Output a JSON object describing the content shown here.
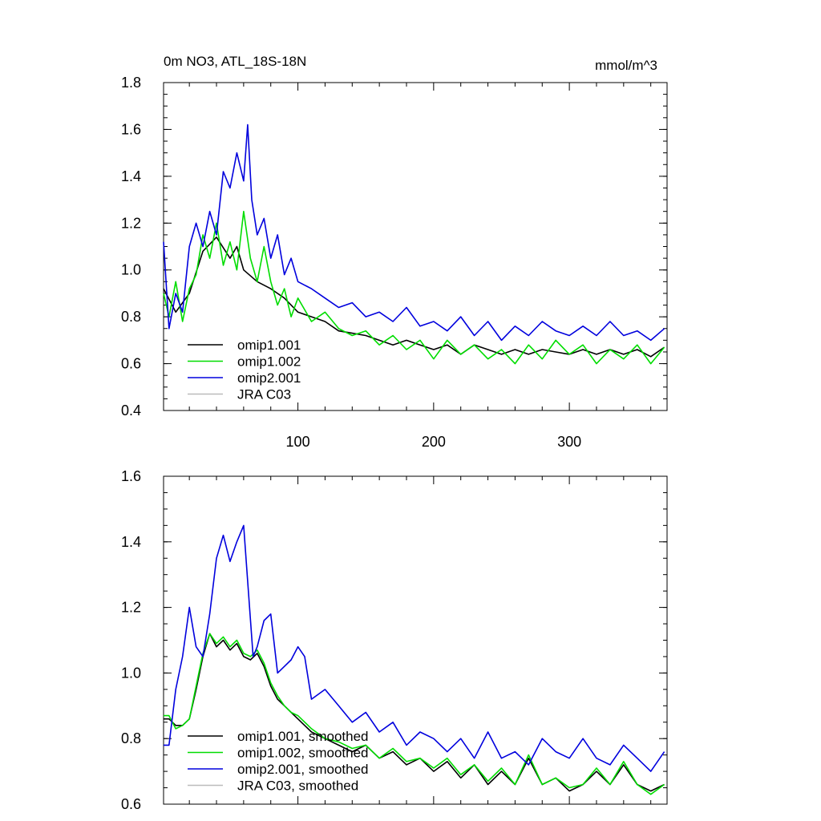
{
  "colors": {
    "omip1_001": "#000000",
    "omip1_002": "#00dd00",
    "omip2_001": "#0000dd",
    "jra_c03": "#bbbbbb"
  },
  "chart_data": [
    {
      "type": "line",
      "title": "0m NO3, ATL_18S-18N",
      "units": "mmol/m^3",
      "xlim": [
        1,
        372
      ],
      "ylim": [
        0.4,
        1.8
      ],
      "xticks": [
        100,
        200,
        300
      ],
      "xtick_labels": [
        "100",
        "200",
        "300"
      ],
      "yticks": [
        0.4,
        0.6,
        0.8,
        1.0,
        1.2,
        1.4,
        1.6,
        1.8
      ],
      "ytick_labels": [
        "0.4",
        "0.6",
        "0.8",
        "1.0",
        "1.2",
        "1.4",
        "1.6",
        "1.8"
      ],
      "legend_position": "bottom-left",
      "series": [
        {
          "name": "omip1.001",
          "color": "#000000",
          "x": [
            1,
            10,
            20,
            30,
            40,
            50,
            55,
            60,
            70,
            80,
            90,
            100,
            110,
            120,
            130,
            140,
            150,
            160,
            170,
            180,
            190,
            200,
            210,
            220,
            230,
            240,
            250,
            260,
            270,
            280,
            290,
            300,
            310,
            320,
            330,
            340,
            350,
            360,
            370
          ],
          "y": [
            0.92,
            0.82,
            0.9,
            1.08,
            1.14,
            1.05,
            1.1,
            1.0,
            0.95,
            0.92,
            0.88,
            0.82,
            0.8,
            0.78,
            0.74,
            0.73,
            0.72,
            0.7,
            0.68,
            0.7,
            0.68,
            0.66,
            0.68,
            0.64,
            0.68,
            0.66,
            0.64,
            0.66,
            0.64,
            0.66,
            0.65,
            0.64,
            0.66,
            0.64,
            0.66,
            0.64,
            0.66,
            0.63,
            0.67
          ]
        },
        {
          "name": "omip1.002",
          "color": "#00dd00",
          "x": [
            1,
            5,
            10,
            15,
            20,
            25,
            30,
            35,
            40,
            45,
            50,
            55,
            60,
            65,
            70,
            75,
            80,
            85,
            90,
            95,
            100,
            110,
            120,
            130,
            140,
            150,
            160,
            170,
            180,
            190,
            200,
            210,
            220,
            230,
            240,
            250,
            260,
            270,
            280,
            290,
            300,
            310,
            320,
            330,
            340,
            350,
            360,
            370
          ],
          "y": [
            0.9,
            0.8,
            0.95,
            0.78,
            0.92,
            0.98,
            1.15,
            1.05,
            1.2,
            1.02,
            1.12,
            1.0,
            1.25,
            1.05,
            0.95,
            1.1,
            0.95,
            0.85,
            0.92,
            0.8,
            0.88,
            0.78,
            0.82,
            0.75,
            0.72,
            0.74,
            0.68,
            0.72,
            0.66,
            0.7,
            0.62,
            0.7,
            0.64,
            0.68,
            0.62,
            0.66,
            0.6,
            0.68,
            0.62,
            0.7,
            0.64,
            0.68,
            0.6,
            0.66,
            0.62,
            0.68,
            0.6,
            0.67
          ]
        },
        {
          "name": "omip2.001",
          "color": "#0000dd",
          "x": [
            1,
            5,
            10,
            15,
            20,
            25,
            30,
            35,
            40,
            45,
            50,
            55,
            60,
            63,
            66,
            70,
            75,
            80,
            85,
            90,
            95,
            100,
            110,
            120,
            130,
            140,
            150,
            160,
            170,
            180,
            190,
            200,
            210,
            220,
            230,
            240,
            250,
            260,
            270,
            280,
            290,
            300,
            310,
            320,
            330,
            340,
            350,
            360,
            370
          ],
          "y": [
            1.12,
            0.75,
            0.9,
            0.82,
            1.1,
            1.2,
            1.1,
            1.25,
            1.15,
            1.42,
            1.35,
            1.5,
            1.38,
            1.62,
            1.3,
            1.15,
            1.22,
            1.05,
            1.15,
            0.98,
            1.05,
            0.95,
            0.92,
            0.88,
            0.84,
            0.86,
            0.8,
            0.82,
            0.78,
            0.84,
            0.76,
            0.78,
            0.74,
            0.8,
            0.72,
            0.78,
            0.7,
            0.76,
            0.72,
            0.78,
            0.74,
            0.72,
            0.76,
            0.72,
            0.78,
            0.72,
            0.74,
            0.7,
            0.75
          ]
        },
        {
          "name": "JRA C03",
          "color": "#bbbbbb",
          "x": [],
          "y": []
        }
      ]
    },
    {
      "type": "line",
      "title": "",
      "units": "",
      "xlim": [
        1,
        372
      ],
      "ylim": [
        0.6,
        1.6
      ],
      "xticks": [
        100,
        200,
        300
      ],
      "xtick_labels": [],
      "yticks": [
        0.6,
        0.8,
        1.0,
        1.2,
        1.4,
        1.6
      ],
      "ytick_labels": [
        "0.6",
        "0.8",
        "1.0",
        "1.2",
        "1.4",
        "1.6"
      ],
      "legend_position": "bottom-left",
      "series": [
        {
          "name": "omip1.001, smoothed",
          "color": "#000000",
          "x": [
            1,
            5,
            10,
            15,
            20,
            25,
            30,
            35,
            40,
            45,
            50,
            55,
            60,
            65,
            70,
            75,
            80,
            85,
            90,
            95,
            100,
            110,
            120,
            130,
            140,
            150,
            160,
            170,
            180,
            190,
            200,
            210,
            220,
            230,
            240,
            250,
            260,
            270,
            280,
            290,
            300,
            310,
            320,
            330,
            340,
            350,
            360,
            370
          ],
          "y": [
            0.86,
            0.86,
            0.84,
            0.84,
            0.86,
            0.95,
            1.05,
            1.12,
            1.08,
            1.1,
            1.07,
            1.09,
            1.05,
            1.04,
            1.06,
            1.02,
            0.96,
            0.92,
            0.9,
            0.88,
            0.86,
            0.82,
            0.8,
            0.78,
            0.76,
            0.78,
            0.74,
            0.76,
            0.72,
            0.74,
            0.7,
            0.73,
            0.68,
            0.72,
            0.66,
            0.7,
            0.66,
            0.74,
            0.66,
            0.68,
            0.64,
            0.66,
            0.7,
            0.66,
            0.72,
            0.66,
            0.64,
            0.66
          ]
        },
        {
          "name": "omip1.002, smoothed",
          "color": "#00dd00",
          "x": [
            1,
            5,
            10,
            15,
            20,
            25,
            30,
            35,
            40,
            45,
            50,
            55,
            60,
            65,
            70,
            75,
            80,
            85,
            90,
            95,
            100,
            110,
            120,
            130,
            140,
            150,
            160,
            170,
            180,
            190,
            200,
            210,
            220,
            230,
            240,
            250,
            260,
            270,
            280,
            290,
            300,
            310,
            320,
            330,
            340,
            350,
            360,
            370
          ],
          "y": [
            0.87,
            0.87,
            0.83,
            0.84,
            0.86,
            0.96,
            1.06,
            1.12,
            1.09,
            1.11,
            1.08,
            1.1,
            1.06,
            1.05,
            1.07,
            1.03,
            0.97,
            0.93,
            0.9,
            0.88,
            0.87,
            0.83,
            0.8,
            0.79,
            0.77,
            0.78,
            0.74,
            0.77,
            0.73,
            0.74,
            0.71,
            0.74,
            0.69,
            0.72,
            0.67,
            0.71,
            0.66,
            0.75,
            0.66,
            0.68,
            0.65,
            0.66,
            0.71,
            0.66,
            0.73,
            0.66,
            0.63,
            0.66
          ]
        },
        {
          "name": "omip2.001, smoothed",
          "color": "#0000dd",
          "x": [
            1,
            5,
            10,
            15,
            20,
            25,
            30,
            35,
            40,
            45,
            50,
            55,
            60,
            63,
            67,
            70,
            75,
            80,
            85,
            90,
            95,
            100,
            105,
            110,
            120,
            130,
            140,
            150,
            160,
            170,
            180,
            190,
            200,
            210,
            220,
            230,
            240,
            250,
            260,
            270,
            280,
            290,
            300,
            310,
            320,
            330,
            340,
            350,
            360,
            370
          ],
          "y": [
            0.78,
            0.78,
            0.95,
            1.05,
            1.2,
            1.08,
            1.05,
            1.18,
            1.35,
            1.42,
            1.34,
            1.4,
            1.45,
            1.28,
            1.05,
            1.08,
            1.16,
            1.18,
            1.0,
            1.02,
            1.04,
            1.08,
            1.05,
            0.92,
            0.95,
            0.9,
            0.85,
            0.88,
            0.82,
            0.85,
            0.78,
            0.82,
            0.8,
            0.76,
            0.8,
            0.74,
            0.82,
            0.74,
            0.76,
            0.72,
            0.8,
            0.76,
            0.74,
            0.8,
            0.74,
            0.72,
            0.78,
            0.74,
            0.7,
            0.76
          ]
        },
        {
          "name": "JRA C03, smoothed",
          "color": "#bbbbbb",
          "x": [],
          "y": []
        }
      ]
    }
  ]
}
